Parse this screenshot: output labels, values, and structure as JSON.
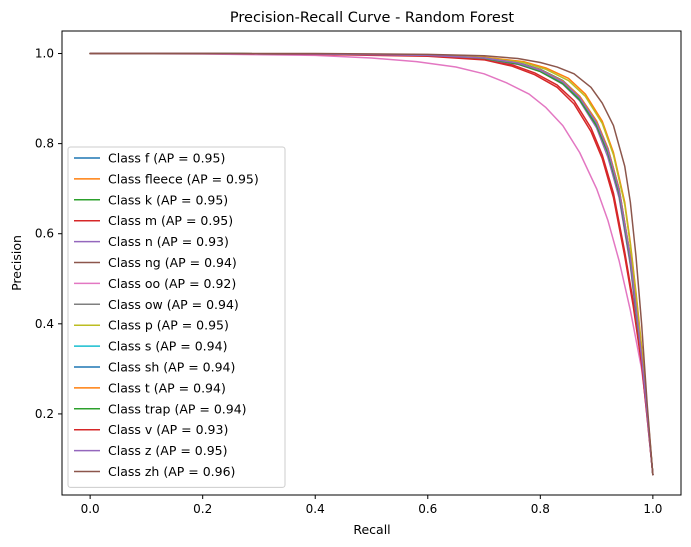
{
  "chart_data": {
    "type": "line",
    "title": "Precision-Recall Curve - Random Forest",
    "xlabel": "Recall",
    "ylabel": "Precision",
    "xlim": [
      -0.05,
      1.05
    ],
    "ylim": [
      0.02,
      1.05
    ],
    "xticks": [
      0.0,
      0.2,
      0.4,
      0.6,
      0.8,
      1.0
    ],
    "xtick_labels": [
      "0.0",
      "0.2",
      "0.4",
      "0.6",
      "0.8",
      "1.0"
    ],
    "yticks": [
      0.2,
      0.4,
      0.6,
      0.8,
      1.0
    ],
    "ytick_labels": [
      "0.2",
      "0.4",
      "0.6",
      "0.8",
      "1.0"
    ],
    "grid": false,
    "legend_position": "center-left",
    "series": [
      {
        "name": "Class f (AP = 0.95)",
        "color": "#1f77b4",
        "x": [
          0,
          0.2,
          0.4,
          0.6,
          0.7,
          0.76,
          0.8,
          0.84,
          0.87,
          0.9,
          0.92,
          0.94,
          0.96,
          0.97,
          0.98,
          0.99,
          1.0
        ],
        "y": [
          1.0,
          1.0,
          0.999,
          0.996,
          0.99,
          0.98,
          0.965,
          0.94,
          0.905,
          0.85,
          0.79,
          0.7,
          0.55,
          0.44,
          0.33,
          0.2,
          0.065
        ]
      },
      {
        "name": "Class fleece (AP = 0.95)",
        "color": "#ff7f0e",
        "x": [
          0,
          0.2,
          0.4,
          0.6,
          0.7,
          0.77,
          0.81,
          0.85,
          0.88,
          0.91,
          0.93,
          0.95,
          0.96,
          0.97,
          0.98,
          0.99,
          1.0
        ],
        "y": [
          1.0,
          1.0,
          0.999,
          0.997,
          0.992,
          0.982,
          0.968,
          0.945,
          0.91,
          0.85,
          0.78,
          0.67,
          0.58,
          0.47,
          0.35,
          0.21,
          0.065
        ]
      },
      {
        "name": "Class k (AP = 0.95)",
        "color": "#2ca02c",
        "x": [
          0,
          0.2,
          0.4,
          0.6,
          0.7,
          0.76,
          0.8,
          0.84,
          0.87,
          0.9,
          0.92,
          0.94,
          0.96,
          0.97,
          0.98,
          0.99,
          1.0
        ],
        "y": [
          1.0,
          1.0,
          0.999,
          0.996,
          0.99,
          0.978,
          0.962,
          0.935,
          0.9,
          0.84,
          0.78,
          0.69,
          0.54,
          0.43,
          0.32,
          0.2,
          0.065
        ]
      },
      {
        "name": "Class m (AP = 0.95)",
        "color": "#d62728",
        "x": [
          0,
          0.2,
          0.4,
          0.6,
          0.7,
          0.75,
          0.79,
          0.83,
          0.86,
          0.89,
          0.91,
          0.93,
          0.95,
          0.965,
          0.98,
          0.99,
          1.0
        ],
        "y": [
          1.0,
          1.0,
          0.999,
          0.995,
          0.988,
          0.975,
          0.957,
          0.93,
          0.895,
          0.835,
          0.775,
          0.69,
          0.56,
          0.45,
          0.32,
          0.2,
          0.065
        ]
      },
      {
        "name": "Class n (AP = 0.93)",
        "color": "#9467bd",
        "x": [
          0,
          0.2,
          0.4,
          0.6,
          0.7,
          0.76,
          0.8,
          0.84,
          0.87,
          0.9,
          0.92,
          0.94,
          0.96,
          0.97,
          0.98,
          0.99,
          1.0
        ],
        "y": [
          1.0,
          1.0,
          0.999,
          0.995,
          0.988,
          0.976,
          0.96,
          0.932,
          0.895,
          0.835,
          0.77,
          0.68,
          0.53,
          0.42,
          0.31,
          0.19,
          0.065
        ]
      },
      {
        "name": "Class ng (AP = 0.94)",
        "color": "#8c564b",
        "x": [
          0,
          0.2,
          0.4,
          0.6,
          0.7,
          0.76,
          0.8,
          0.84,
          0.87,
          0.9,
          0.92,
          0.94,
          0.96,
          0.97,
          0.98,
          0.99,
          1.0
        ],
        "y": [
          1.0,
          1.0,
          0.999,
          0.996,
          0.989,
          0.977,
          0.961,
          0.934,
          0.898,
          0.84,
          0.78,
          0.69,
          0.54,
          0.43,
          0.32,
          0.2,
          0.065
        ]
      },
      {
        "name": "Class oo (AP = 0.92)",
        "color": "#e377c2",
        "x": [
          0,
          0.2,
          0.4,
          0.5,
          0.58,
          0.65,
          0.7,
          0.74,
          0.78,
          0.81,
          0.84,
          0.87,
          0.9,
          0.92,
          0.94,
          0.96,
          0.98,
          0.99,
          1.0
        ],
        "y": [
          1.0,
          0.999,
          0.996,
          0.99,
          0.982,
          0.97,
          0.955,
          0.935,
          0.91,
          0.88,
          0.84,
          0.78,
          0.7,
          0.63,
          0.54,
          0.43,
          0.3,
          0.2,
          0.065
        ]
      },
      {
        "name": "Class ow (AP = 0.94)",
        "color": "#7f7f7f",
        "x": [
          0,
          0.2,
          0.4,
          0.6,
          0.7,
          0.76,
          0.8,
          0.84,
          0.87,
          0.9,
          0.92,
          0.94,
          0.96,
          0.97,
          0.98,
          0.99,
          1.0
        ],
        "y": [
          1.0,
          1.0,
          0.999,
          0.996,
          0.99,
          0.979,
          0.963,
          0.937,
          0.902,
          0.845,
          0.785,
          0.695,
          0.545,
          0.435,
          0.325,
          0.2,
          0.065
        ]
      },
      {
        "name": "Class p (AP = 0.95)",
        "color": "#bcbd22",
        "x": [
          0,
          0.2,
          0.4,
          0.6,
          0.7,
          0.77,
          0.81,
          0.85,
          0.88,
          0.91,
          0.93,
          0.95,
          0.96,
          0.97,
          0.98,
          0.99,
          1.0
        ],
        "y": [
          1.0,
          1.0,
          0.999,
          0.997,
          0.991,
          0.98,
          0.965,
          0.94,
          0.905,
          0.845,
          0.775,
          0.665,
          0.575,
          0.465,
          0.345,
          0.21,
          0.065
        ]
      },
      {
        "name": "Class s (AP = 0.94)",
        "color": "#17becf",
        "x": [
          0,
          0.2,
          0.4,
          0.6,
          0.7,
          0.76,
          0.8,
          0.84,
          0.87,
          0.9,
          0.92,
          0.94,
          0.96,
          0.97,
          0.98,
          0.99,
          1.0
        ],
        "y": [
          1.0,
          1.0,
          0.999,
          0.996,
          0.99,
          0.978,
          0.962,
          0.936,
          0.9,
          0.843,
          0.782,
          0.692,
          0.542,
          0.432,
          0.322,
          0.2,
          0.065
        ]
      },
      {
        "name": "Class sh (AP = 0.94)",
        "color": "#1f77b4",
        "x": [
          0,
          0.2,
          0.4,
          0.6,
          0.7,
          0.76,
          0.8,
          0.84,
          0.87,
          0.9,
          0.92,
          0.94,
          0.96,
          0.97,
          0.98,
          0.99,
          1.0
        ],
        "y": [
          1.0,
          1.0,
          0.999,
          0.996,
          0.99,
          0.979,
          0.964,
          0.938,
          0.903,
          0.846,
          0.786,
          0.696,
          0.546,
          0.436,
          0.326,
          0.2,
          0.065
        ]
      },
      {
        "name": "Class t (AP = 0.94)",
        "color": "#ff7f0e",
        "x": [
          0,
          0.2,
          0.4,
          0.6,
          0.7,
          0.76,
          0.8,
          0.84,
          0.87,
          0.9,
          0.92,
          0.94,
          0.96,
          0.97,
          0.98,
          0.99,
          1.0
        ],
        "y": [
          1.0,
          1.0,
          0.999,
          0.996,
          0.99,
          0.979,
          0.964,
          0.939,
          0.905,
          0.85,
          0.79,
          0.7,
          0.55,
          0.44,
          0.33,
          0.2,
          0.065
        ]
      },
      {
        "name": "Class trap (AP = 0.94)",
        "color": "#2ca02c",
        "x": [
          0,
          0.2,
          0.4,
          0.6,
          0.7,
          0.76,
          0.8,
          0.84,
          0.87,
          0.9,
          0.92,
          0.94,
          0.96,
          0.97,
          0.98,
          0.99,
          1.0
        ],
        "y": [
          1.0,
          1.0,
          0.999,
          0.996,
          0.989,
          0.977,
          0.96,
          0.933,
          0.897,
          0.84,
          0.78,
          0.69,
          0.54,
          0.43,
          0.32,
          0.2,
          0.065
        ]
      },
      {
        "name": "Class v (AP = 0.93)",
        "color": "#d62728",
        "x": [
          0,
          0.2,
          0.4,
          0.6,
          0.7,
          0.75,
          0.79,
          0.83,
          0.86,
          0.89,
          0.91,
          0.93,
          0.95,
          0.965,
          0.98,
          0.99,
          1.0
        ],
        "y": [
          1.0,
          1.0,
          0.998,
          0.994,
          0.986,
          0.972,
          0.953,
          0.925,
          0.888,
          0.827,
          0.767,
          0.68,
          0.55,
          0.44,
          0.31,
          0.19,
          0.065
        ]
      },
      {
        "name": "Class z (AP = 0.95)",
        "color": "#9467bd",
        "x": [
          0,
          0.2,
          0.4,
          0.6,
          0.7,
          0.76,
          0.8,
          0.84,
          0.87,
          0.9,
          0.92,
          0.94,
          0.96,
          0.97,
          0.98,
          0.99,
          1.0
        ],
        "y": [
          1.0,
          1.0,
          0.999,
          0.996,
          0.99,
          0.979,
          0.963,
          0.937,
          0.902,
          0.846,
          0.786,
          0.696,
          0.546,
          0.436,
          0.326,
          0.2,
          0.065
        ]
      },
      {
        "name": "Class zh (AP = 0.96)",
        "color": "#8c564b",
        "x": [
          0,
          0.2,
          0.4,
          0.6,
          0.7,
          0.76,
          0.8,
          0.83,
          0.86,
          0.89,
          0.91,
          0.93,
          0.95,
          0.96,
          0.97,
          0.98,
          0.99,
          1.0
        ],
        "y": [
          1.0,
          1.0,
          1.0,
          0.998,
          0.995,
          0.989,
          0.98,
          0.97,
          0.955,
          0.925,
          0.89,
          0.84,
          0.75,
          0.67,
          0.55,
          0.4,
          0.22,
          0.065
        ]
      }
    ]
  }
}
